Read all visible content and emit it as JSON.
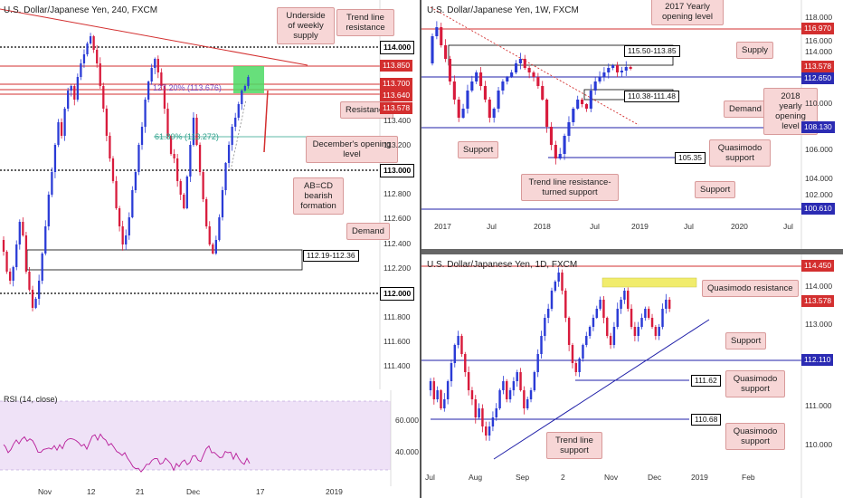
{
  "colors": {
    "support_blue": "#1f1fa8",
    "resistance_red": "#d32f2f",
    "note_bg": "#f7d6d6",
    "rsi_bg": "#efe2f7",
    "green_zone": "#4cd964",
    "yellow_zone": "#f1ec6c"
  },
  "h4": {
    "title": "U.S. Dollar/Japanese Yen, 240, FXCM",
    "price_labels": [
      "114.000",
      "113.850",
      "113.700",
      "113.640",
      "113.578",
      "113.000",
      "112.000"
    ],
    "axis_labels": [
      "113.400",
      "113.200",
      "112.800",
      "112.600",
      "112.400",
      "112.200",
      "111.800",
      "111.600",
      "111.400"
    ],
    "fib_127": "127.20% (113.676)",
    "fib_618": "61.80% (113.272)",
    "demand_box": "112.19-112.36",
    "x_labels": [
      "Nov",
      "12",
      "21",
      "Dec",
      "17",
      "2019"
    ],
    "notes": {
      "weekly_supply": "Underside\nof weekly\nsupply",
      "trend_res": "Trend line\nresistance",
      "resistance": "Resistance",
      "december": "December's opening\nlevel",
      "abcd": "AB=CD\nbearish\nformation",
      "demand": "Demand"
    },
    "rsi_title": "RSI (14, close)",
    "rsi_labels": [
      "60.0000",
      "40.0000"
    ]
  },
  "weekly": {
    "title": "U.S. Dollar/Japanese Yen, 1W, FXCM",
    "price_labels": [
      "116.970",
      "113.578",
      "112.650",
      "108.130",
      "100.610"
    ],
    "axis_labels": [
      "118.000",
      "116.000",
      "114.000",
      "110.000",
      "106.000",
      "104.000",
      "102.000"
    ],
    "supply_box": "115.50-113.85",
    "demand_box": "110.38-111.48",
    "qm_box": "105.35",
    "x_labels": [
      "2017",
      "Jul",
      "2018",
      "Jul",
      "2019",
      "Jul",
      "2020",
      "Jul"
    ],
    "notes": {
      "opening_2017": "2017 Yearly\nopening level",
      "supply": "Supply",
      "demand": "Demand",
      "opening_2018": "2018 yearly\nopening\nlevel",
      "support1": "Support",
      "qm": "Quasimodo\nsupport",
      "trend": "Trend line resistance-\nturned support",
      "support2": "Support"
    }
  },
  "daily": {
    "title": "U.S. Dollar/Japanese Yen, 1D, FXCM",
    "price_labels": [
      "114.450",
      "113.578",
      "112.110"
    ],
    "axis_labels": [
      "114.000",
      "113.000",
      "111.000",
      "110.000"
    ],
    "qm1_box": "111.62",
    "qm2_box": "110.68",
    "x_labels": [
      "Jul",
      "Aug",
      "Sep",
      "2",
      "Nov",
      "Dec",
      "2019",
      "Feb"
    ],
    "notes": {
      "qm_res": "Quasimodo resistance",
      "support": "Support",
      "qm1": "Quasimodo\nsupport",
      "trend": "Trend line\nsupport",
      "qm2": "Quasimodo\nsupport"
    }
  }
}
